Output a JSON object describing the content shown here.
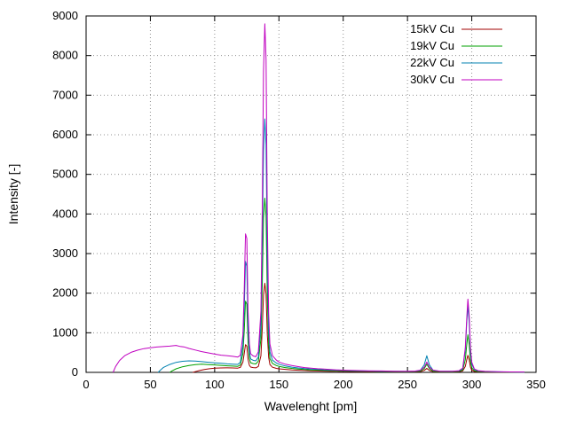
{
  "chart_data": {
    "type": "line",
    "title": "",
    "xlabel": "Wavelenght [pm]",
    "ylabel": "Intensity [-]",
    "xlim": [
      0,
      350
    ],
    "ylim": [
      0,
      9000
    ],
    "xticks": [
      0,
      50,
      100,
      150,
      200,
      250,
      300,
      350
    ],
    "yticks": [
      0,
      1000,
      2000,
      3000,
      4000,
      5000,
      6000,
      7000,
      8000,
      9000
    ],
    "grid": true,
    "legend_position": "top-right",
    "series": [
      {
        "name": "15kV Cu",
        "color": "#a00000",
        "points": [
          [
            83,
            0
          ],
          [
            85,
            18
          ],
          [
            88,
            45
          ],
          [
            92,
            72
          ],
          [
            96,
            92
          ],
          [
            100,
            105
          ],
          [
            105,
            112
          ],
          [
            110,
            115
          ],
          [
            114,
            112
          ],
          [
            118,
            108
          ],
          [
            120,
            125
          ],
          [
            122,
            260
          ],
          [
            123,
            480
          ],
          [
            124,
            700
          ],
          [
            125,
            660
          ],
          [
            126,
            330
          ],
          [
            127,
            180
          ],
          [
            128,
            135
          ],
          [
            130,
            120
          ],
          [
            132,
            115
          ],
          [
            134,
            150
          ],
          [
            136,
            420
          ],
          [
            137,
            1100
          ],
          [
            138,
            1950
          ],
          [
            139,
            2250
          ],
          [
            140,
            1980
          ],
          [
            141,
            950
          ],
          [
            142,
            380
          ],
          [
            143,
            200
          ],
          [
            145,
            130
          ],
          [
            148,
            100
          ],
          [
            150,
            90
          ],
          [
            155,
            75
          ],
          [
            160,
            63
          ],
          [
            165,
            54
          ],
          [
            170,
            46
          ],
          [
            175,
            40
          ],
          [
            180,
            36
          ],
          [
            185,
            32
          ],
          [
            190,
            29
          ],
          [
            195,
            26
          ],
          [
            200,
            24
          ],
          [
            210,
            20
          ],
          [
            220,
            17
          ],
          [
            230,
            15
          ],
          [
            240,
            13
          ],
          [
            250,
            12
          ],
          [
            256,
            14
          ],
          [
            260,
            20
          ],
          [
            263,
            50
          ],
          [
            265,
            100
          ],
          [
            267,
            48
          ],
          [
            270,
            18
          ],
          [
            275,
            12
          ],
          [
            280,
            12
          ],
          [
            285,
            12
          ],
          [
            290,
            16
          ],
          [
            293,
            35
          ],
          [
            295,
            150
          ],
          [
            296,
            310
          ],
          [
            297,
            430
          ],
          [
            298,
            320
          ],
          [
            299,
            130
          ],
          [
            300,
            55
          ],
          [
            302,
            22
          ],
          [
            305,
            13
          ],
          [
            310,
            9
          ],
          [
            320,
            6
          ],
          [
            330,
            4
          ],
          [
            341,
            3
          ]
        ]
      },
      {
        "name": "19kV Cu",
        "color": "#00a000",
        "points": [
          [
            65,
            0
          ],
          [
            67,
            40
          ],
          [
            70,
            90
          ],
          [
            75,
            140
          ],
          [
            80,
            175
          ],
          [
            85,
            195
          ],
          [
            90,
            205
          ],
          [
            95,
            198
          ],
          [
            100,
            188
          ],
          [
            105,
            176
          ],
          [
            110,
            166
          ],
          [
            114,
            158
          ],
          [
            118,
            152
          ],
          [
            120,
            185
          ],
          [
            122,
            480
          ],
          [
            123,
            1050
          ],
          [
            124,
            1800
          ],
          [
            125,
            1720
          ],
          [
            126,
            760
          ],
          [
            127,
            350
          ],
          [
            128,
            245
          ],
          [
            130,
            222
          ],
          [
            132,
            212
          ],
          [
            134,
            285
          ],
          [
            136,
            850
          ],
          [
            137,
            2200
          ],
          [
            138,
            3900
          ],
          [
            139,
            4400
          ],
          [
            140,
            3950
          ],
          [
            141,
            1900
          ],
          [
            142,
            700
          ],
          [
            143,
            350
          ],
          [
            145,
            225
          ],
          [
            148,
            172
          ],
          [
            150,
            152
          ],
          [
            155,
            122
          ],
          [
            160,
            100
          ],
          [
            165,
            85
          ],
          [
            170,
            72
          ],
          [
            175,
            63
          ],
          [
            180,
            56
          ],
          [
            185,
            50
          ],
          [
            190,
            45
          ],
          [
            195,
            40
          ],
          [
            200,
            37
          ],
          [
            210,
            31
          ],
          [
            220,
            27
          ],
          [
            230,
            23
          ],
          [
            240,
            20
          ],
          [
            250,
            19
          ],
          [
            256,
            22
          ],
          [
            260,
            32
          ],
          [
            263,
            95
          ],
          [
            265,
            205
          ],
          [
            267,
            95
          ],
          [
            270,
            30
          ],
          [
            275,
            20
          ],
          [
            280,
            19
          ],
          [
            285,
            19
          ],
          [
            290,
            25
          ],
          [
            293,
            60
          ],
          [
            295,
            320
          ],
          [
            296,
            670
          ],
          [
            297,
            950
          ],
          [
            298,
            700
          ],
          [
            299,
            280
          ],
          [
            300,
            115
          ],
          [
            302,
            42
          ],
          [
            305,
            22
          ],
          [
            310,
            15
          ],
          [
            320,
            9
          ],
          [
            330,
            7
          ],
          [
            341,
            5
          ]
        ]
      },
      {
        "name": "22kV Cu",
        "color": "#0080b0",
        "points": [
          [
            56,
            0
          ],
          [
            58,
            60
          ],
          [
            60,
            120
          ],
          [
            65,
            200
          ],
          [
            70,
            252
          ],
          [
            75,
            280
          ],
          [
            80,
            292
          ],
          [
            85,
            285
          ],
          [
            90,
            272
          ],
          [
            95,
            255
          ],
          [
            100,
            242
          ],
          [
            105,
            228
          ],
          [
            110,
            216
          ],
          [
            114,
            208
          ],
          [
            118,
            202
          ],
          [
            120,
            255
          ],
          [
            122,
            700
          ],
          [
            123,
            1600
          ],
          [
            124,
            2800
          ],
          [
            125,
            2680
          ],
          [
            126,
            1150
          ],
          [
            127,
            520
          ],
          [
            128,
            340
          ],
          [
            130,
            305
          ],
          [
            132,
            292
          ],
          [
            134,
            385
          ],
          [
            136,
            1200
          ],
          [
            137,
            3200
          ],
          [
            138,
            5600
          ],
          [
            139,
            6400
          ],
          [
            140,
            5750
          ],
          [
            141,
            2800
          ],
          [
            142,
            1050
          ],
          [
            143,
            520
          ],
          [
            145,
            310
          ],
          [
            148,
            235
          ],
          [
            150,
            205
          ],
          [
            155,
            162
          ],
          [
            160,
            132
          ],
          [
            165,
            112
          ],
          [
            170,
            96
          ],
          [
            175,
            85
          ],
          [
            180,
            75
          ],
          [
            185,
            66
          ],
          [
            190,
            59
          ],
          [
            195,
            53
          ],
          [
            200,
            48
          ],
          [
            210,
            40
          ],
          [
            220,
            34
          ],
          [
            230,
            30
          ],
          [
            240,
            26
          ],
          [
            250,
            25
          ],
          [
            256,
            30
          ],
          [
            260,
            50
          ],
          [
            263,
            190
          ],
          [
            265,
            420
          ],
          [
            267,
            190
          ],
          [
            270,
            50
          ],
          [
            275,
            28
          ],
          [
            280,
            26
          ],
          [
            285,
            26
          ],
          [
            290,
            36
          ],
          [
            293,
            95
          ],
          [
            295,
            560
          ],
          [
            296,
            1220
          ],
          [
            297,
            1700
          ],
          [
            298,
            1250
          ],
          [
            299,
            500
          ],
          [
            300,
            205
          ],
          [
            302,
            72
          ],
          [
            305,
            36
          ],
          [
            310,
            22
          ],
          [
            320,
            13
          ],
          [
            330,
            9
          ],
          [
            341,
            7
          ]
        ]
      },
      {
        "name": "30kV Cu",
        "color": "#c000c0",
        "points": [
          [
            21,
            0
          ],
          [
            23,
            150
          ],
          [
            26,
            300
          ],
          [
            30,
            420
          ],
          [
            35,
            505
          ],
          [
            40,
            560
          ],
          [
            45,
            600
          ],
          [
            50,
            622
          ],
          [
            55,
            640
          ],
          [
            60,
            652
          ],
          [
            65,
            662
          ],
          [
            70,
            680
          ],
          [
            73,
            655
          ],
          [
            76,
            645
          ],
          [
            80,
            605
          ],
          [
            85,
            565
          ],
          [
            90,
            525
          ],
          [
            95,
            492
          ],
          [
            100,
            462
          ],
          [
            105,
            435
          ],
          [
            110,
            422
          ],
          [
            114,
            405
          ],
          [
            118,
            388
          ],
          [
            120,
            430
          ],
          [
            122,
            950
          ],
          [
            123,
            2100
          ],
          [
            124,
            3500
          ],
          [
            125,
            3380
          ],
          [
            126,
            1550
          ],
          [
            127,
            720
          ],
          [
            128,
            470
          ],
          [
            130,
            415
          ],
          [
            132,
            395
          ],
          [
            134,
            520
          ],
          [
            136,
            1550
          ],
          [
            137,
            4100
          ],
          [
            138,
            7600
          ],
          [
            139,
            8800
          ],
          [
            140,
            7900
          ],
          [
            141,
            3900
          ],
          [
            142,
            1500
          ],
          [
            143,
            720
          ],
          [
            145,
            420
          ],
          [
            148,
            310
          ],
          [
            150,
            262
          ],
          [
            155,
            205
          ],
          [
            160,
            172
          ],
          [
            165,
            145
          ],
          [
            170,
            122
          ],
          [
            175,
            105
          ],
          [
            180,
            92
          ],
          [
            185,
            82
          ],
          [
            190,
            72
          ],
          [
            195,
            63
          ],
          [
            200,
            57
          ],
          [
            210,
            47
          ],
          [
            220,
            40
          ],
          [
            230,
            35
          ],
          [
            240,
            30
          ],
          [
            250,
            29
          ],
          [
            256,
            34
          ],
          [
            260,
            55
          ],
          [
            263,
            130
          ],
          [
            265,
            260
          ],
          [
            267,
            130
          ],
          [
            270,
            55
          ],
          [
            275,
            32
          ],
          [
            280,
            30
          ],
          [
            285,
            30
          ],
          [
            290,
            42
          ],
          [
            293,
            110
          ],
          [
            295,
            620
          ],
          [
            296,
            1320
          ],
          [
            297,
            1850
          ],
          [
            298,
            1420
          ],
          [
            299,
            620
          ],
          [
            300,
            255
          ],
          [
            302,
            85
          ],
          [
            305,
            42
          ],
          [
            310,
            26
          ],
          [
            320,
            16
          ],
          [
            330,
            11
          ],
          [
            341,
            8
          ]
        ]
      }
    ]
  }
}
